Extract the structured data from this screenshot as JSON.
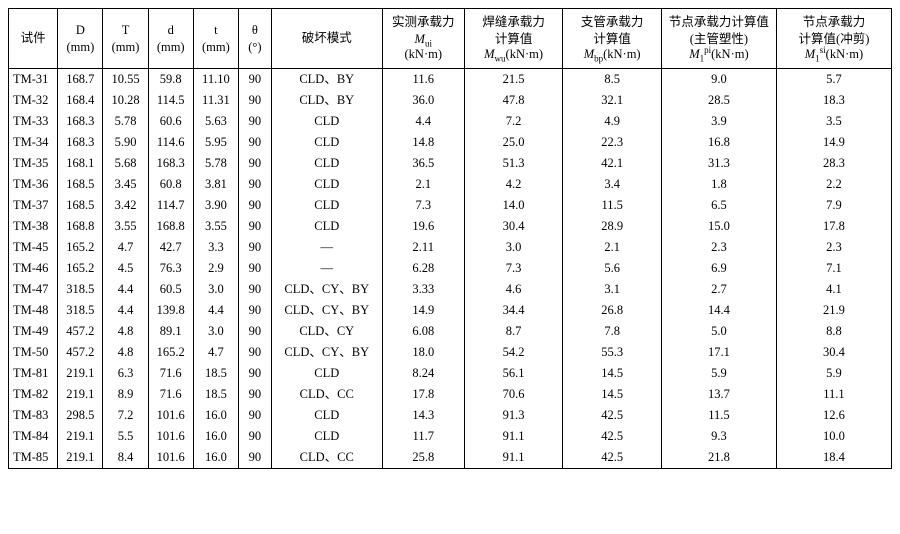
{
  "table": {
    "columns": [
      {
        "main": "试件",
        "sub": ""
      },
      {
        "main": "D",
        "sub": "(mm)"
      },
      {
        "main": "T",
        "sub": "(mm)"
      },
      {
        "main": "d",
        "sub": "(mm)"
      },
      {
        "main": "t",
        "sub": "(mm)"
      },
      {
        "main": "θ",
        "sub": "(°)"
      },
      {
        "main": "破坏模式",
        "sub": ""
      },
      {
        "main": "实测承载力",
        "sub_html": "<i>M</i><sub>ui</sub><br>(kN·m)"
      },
      {
        "main": "焊缝承载力",
        "sub_html": "计算值<br><i>M</i><sub>wu</sub>(kN·m)"
      },
      {
        "main": "支管承载力",
        "sub_html": "计算值<br><i>M</i><sub>bp</sub>(kN·m)"
      },
      {
        "main": "节点承载力计算值",
        "sub_html": "(主管塑性)<br><i>M</i><sub>1</sub><sup>pi</sup>(kN·m)"
      },
      {
        "main": "节点承载力",
        "sub_html": "计算值(冲剪)<br><i>M</i><sub>1</sub><sup>si</sup>(kN·m)"
      }
    ],
    "col_classes": [
      "col0",
      "col1",
      "col2",
      "col3",
      "col4",
      "col5",
      "col6",
      "col7",
      "col8",
      "col9",
      "col10",
      "col11"
    ],
    "rows": [
      [
        "TM-31",
        "168.7",
        "10.55",
        "59.8",
        "11.10",
        "90",
        "CLD、BY",
        "11.6",
        "21.5",
        "8.5",
        "9.0",
        "5.7"
      ],
      [
        "TM-32",
        "168.4",
        "10.28",
        "114.5",
        "11.31",
        "90",
        "CLD、BY",
        "36.0",
        "47.8",
        "32.1",
        "28.5",
        "18.3"
      ],
      [
        "TM-33",
        "168.3",
        "5.78",
        "60.6",
        "5.63",
        "90",
        "CLD",
        "4.4",
        "7.2",
        "4.9",
        "3.9",
        "3.5"
      ],
      [
        "TM-34",
        "168.3",
        "5.90",
        "114.6",
        "5.95",
        "90",
        "CLD",
        "14.8",
        "25.0",
        "22.3",
        "16.8",
        "14.9"
      ],
      [
        "TM-35",
        "168.1",
        "5.68",
        "168.3",
        "5.78",
        "90",
        "CLD",
        "36.5",
        "51.3",
        "42.1",
        "31.3",
        "28.3"
      ],
      [
        "TM-36",
        "168.5",
        "3.45",
        "60.8",
        "3.81",
        "90",
        "CLD",
        "2.1",
        "4.2",
        "3.4",
        "1.8",
        "2.2"
      ],
      [
        "TM-37",
        "168.5",
        "3.42",
        "114.7",
        "3.90",
        "90",
        "CLD",
        "7.3",
        "14.0",
        "11.5",
        "6.5",
        "7.9"
      ],
      [
        "TM-38",
        "168.8",
        "3.55",
        "168.8",
        "3.55",
        "90",
        "CLD",
        "19.6",
        "30.4",
        "28.9",
        "15.0",
        "17.8"
      ],
      [
        "TM-45",
        "165.2",
        "4.7",
        "42.7",
        "3.3",
        "90",
        "—",
        "2.11",
        "3.0",
        "2.1",
        "2.3",
        "2.3"
      ],
      [
        "TM-46",
        "165.2",
        "4.5",
        "76.3",
        "2.9",
        "90",
        "—",
        "6.28",
        "7.3",
        "5.6",
        "6.9",
        "7.1"
      ],
      [
        "TM-47",
        "318.5",
        "4.4",
        "60.5",
        "3.0",
        "90",
        "CLD、CY、BY",
        "3.33",
        "4.6",
        "3.1",
        "2.7",
        "4.1"
      ],
      [
        "TM-48",
        "318.5",
        "4.4",
        "139.8",
        "4.4",
        "90",
        "CLD、CY、BY",
        "14.9",
        "34.4",
        "26.8",
        "14.4",
        "21.9"
      ],
      [
        "TM-49",
        "457.2",
        "4.8",
        "89.1",
        "3.0",
        "90",
        "CLD、CY",
        "6.08",
        "8.7",
        "7.8",
        "5.0",
        "8.8"
      ],
      [
        "TM-50",
        "457.2",
        "4.8",
        "165.2",
        "4.7",
        "90",
        "CLD、CY、BY",
        "18.0",
        "54.2",
        "55.3",
        "17.1",
        "30.4"
      ],
      [
        "TM-81",
        "219.1",
        "6.3",
        "71.6",
        "18.5",
        "90",
        "CLD",
        "8.24",
        "56.1",
        "14.5",
        "5.9",
        "5.9"
      ],
      [
        "TM-82",
        "219.1",
        "8.9",
        "71.6",
        "18.5",
        "90",
        "CLD、CC",
        "17.8",
        "70.6",
        "14.5",
        "13.7",
        "11.1"
      ],
      [
        "TM-83",
        "298.5",
        "7.2",
        "101.6",
        "16.0",
        "90",
        "CLD",
        "14.3",
        "91.3",
        "42.5",
        "11.5",
        "12.6"
      ],
      [
        "TM-84",
        "219.1",
        "5.5",
        "101.6",
        "16.0",
        "90",
        "CLD",
        "11.7",
        "91.1",
        "42.5",
        "9.3",
        "10.0"
      ],
      [
        "TM-85",
        "219.1",
        "8.4",
        "101.6",
        "16.0",
        "90",
        "CLD、CC",
        "25.8",
        "91.1",
        "42.5",
        "21.8",
        "18.4"
      ]
    ]
  }
}
